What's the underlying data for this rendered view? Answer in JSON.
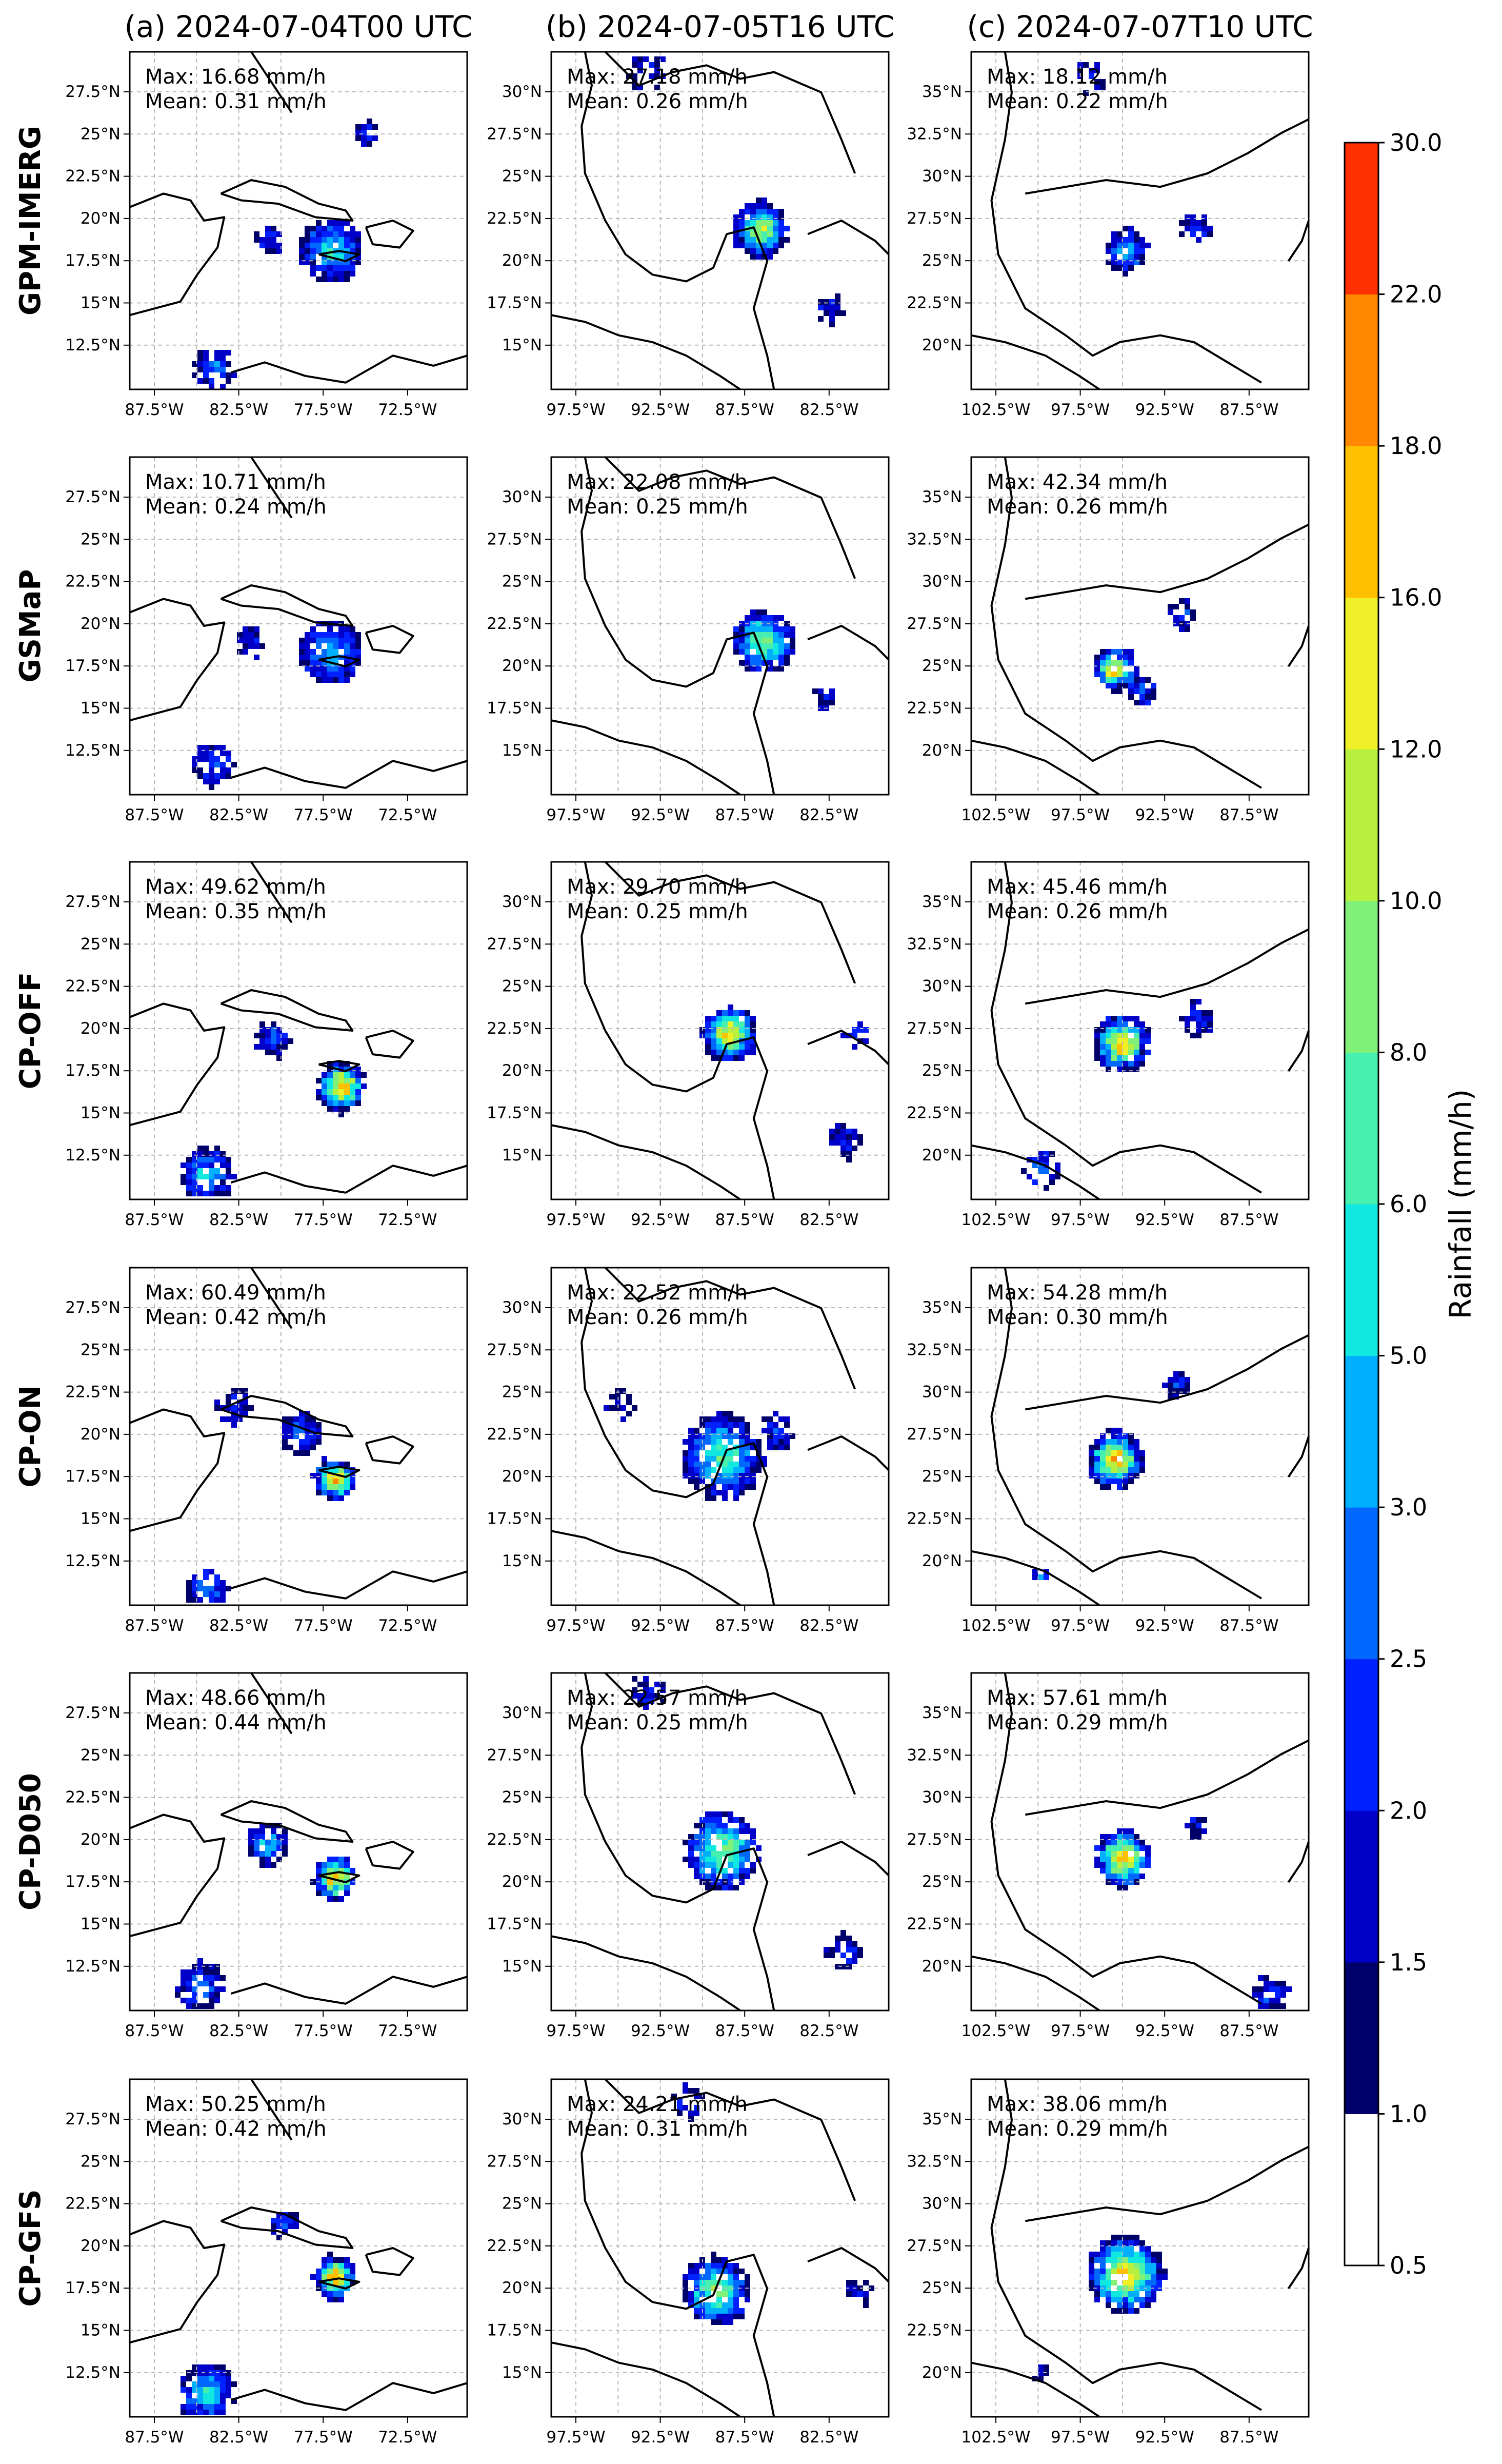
{
  "figure": {
    "column_titles": [
      "(a) 2024-07-04T00 UTC",
      "(b) 2024-07-05T16 UTC",
      "(c) 2024-07-07T10 UTC"
    ],
    "row_labels": [
      "GPM-IMERG",
      "GSMaP",
      "CP-OFF",
      "CP-ON",
      "CP-D050",
      "CP-GFS"
    ]
  },
  "colorbar": {
    "label": "Rainfall (mm/h)",
    "levels": [
      "0.5",
      "1.0",
      "1.5",
      "2.0",
      "2.5",
      "3.0",
      "5.0",
      "6.0",
      "8.0",
      "10.0",
      "12.0",
      "16.0",
      "18.0",
      "22.0",
      "30.0"
    ],
    "colors": [
      "#ffffff",
      "#00006b",
      "#0000c8",
      "#0020ff",
      "#0068ff",
      "#00b0ff",
      "#10e8e0",
      "#48f0b0",
      "#80f078",
      "#b8f040",
      "#f0f028",
      "#ffc000",
      "#ff8800",
      "#ff3000",
      "#800000"
    ]
  },
  "axes": {
    "a": {
      "lon_ticks": [
        "87.5°W",
        "82.5°W",
        "77.5°W",
        "72.5°W"
      ],
      "lat_ticks": [
        "27.5°N",
        "25°N",
        "22.5°N",
        "20°N",
        "17.5°N",
        "15°N",
        "12.5°N"
      ]
    },
    "b": {
      "lon_ticks": [
        "97.5°W",
        "92.5°W",
        "87.5°W",
        "82.5°W"
      ],
      "lat_ticks": [
        "30°N",
        "27.5°N",
        "25°N",
        "22.5°N",
        "20°N",
        "17.5°N",
        "15°N"
      ]
    },
    "c": {
      "lon_ticks": [
        "102.5°W",
        "97.5°W",
        "92.5°W",
        "87.5°W"
      ],
      "lat_ticks": [
        "35°N",
        "32.5°N",
        "30°N",
        "27.5°N",
        "25°N",
        "22.5°N",
        "20°N"
      ]
    }
  },
  "chart_data": {
    "type": "heatmap",
    "units": "mm/h",
    "panels": [
      {
        "row": "GPM-IMERG",
        "col": "a",
        "max": "Max: 16.68 mm/h",
        "mean": "Mean: 0.31 mm/h"
      },
      {
        "row": "GPM-IMERG",
        "col": "b",
        "max": "Max: 27.18 mm/h",
        "mean": "Mean: 0.26 mm/h"
      },
      {
        "row": "GPM-IMERG",
        "col": "c",
        "max": "Max: 18.12 mm/h",
        "mean": "Mean: 0.22 mm/h"
      },
      {
        "row": "GSMaP",
        "col": "a",
        "max": "Max: 10.71 mm/h",
        "mean": "Mean: 0.24 mm/h"
      },
      {
        "row": "GSMaP",
        "col": "b",
        "max": "Max: 22.08 mm/h",
        "mean": "Mean: 0.25 mm/h"
      },
      {
        "row": "GSMaP",
        "col": "c",
        "max": "Max: 42.34 mm/h",
        "mean": "Mean: 0.26 mm/h"
      },
      {
        "row": "CP-OFF",
        "col": "a",
        "max": "Max: 49.62 mm/h",
        "mean": "Mean: 0.35 mm/h"
      },
      {
        "row": "CP-OFF",
        "col": "b",
        "max": "Max: 29.70 mm/h",
        "mean": "Mean: 0.25 mm/h"
      },
      {
        "row": "CP-OFF",
        "col": "c",
        "max": "Max: 45.46 mm/h",
        "mean": "Mean: 0.26 mm/h"
      },
      {
        "row": "CP-ON",
        "col": "a",
        "max": "Max: 60.49 mm/h",
        "mean": "Mean: 0.42 mm/h"
      },
      {
        "row": "CP-ON",
        "col": "b",
        "max": "Max: 22.52 mm/h",
        "mean": "Mean: 0.26 mm/h"
      },
      {
        "row": "CP-ON",
        "col": "c",
        "max": "Max: 54.28 mm/h",
        "mean": "Mean: 0.30 mm/h"
      },
      {
        "row": "CP-D050",
        "col": "a",
        "max": "Max: 48.66 mm/h",
        "mean": "Mean: 0.44 mm/h"
      },
      {
        "row": "CP-D050",
        "col": "b",
        "max": "Max: 22.57 mm/h",
        "mean": "Mean: 0.25 mm/h"
      },
      {
        "row": "CP-D050",
        "col": "c",
        "max": "Max: 57.61 mm/h",
        "mean": "Mean: 0.29 mm/h"
      },
      {
        "row": "CP-GFS",
        "col": "a",
        "max": "Max: 50.25 mm/h",
        "mean": "Mean: 0.42 mm/h"
      },
      {
        "row": "CP-GFS",
        "col": "b",
        "max": "Max: 24.21 mm/h",
        "mean": "Mean: 0.31 mm/h"
      },
      {
        "row": "CP-GFS",
        "col": "c",
        "max": "Max: 38.06 mm/h",
        "mean": "Mean: 0.29 mm/h"
      }
    ]
  }
}
